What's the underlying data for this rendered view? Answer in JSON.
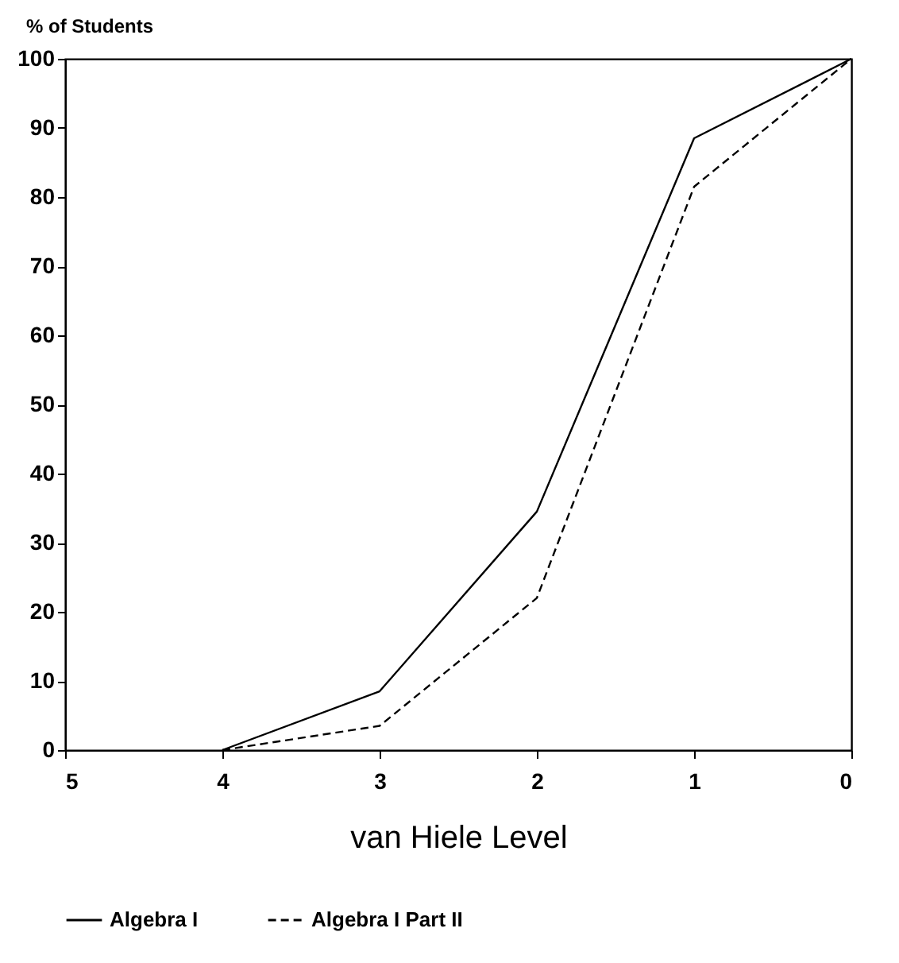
{
  "chart_data": {
    "type": "line",
    "ylabel": "% of Students",
    "xlabel": "van Hiele Level",
    "x": [
      4,
      3,
      2,
      1,
      0
    ],
    "series": [
      {
        "name": "Algebra I",
        "color": "#000000",
        "line_style": "solid",
        "values": [
          0,
          8.5,
          34.5,
          88.5,
          100
        ]
      },
      {
        "name": "Algebra I Part II",
        "color": "#000000",
        "line_style": "dashed",
        "values": [
          0,
          3.5,
          22,
          81.5,
          100
        ]
      }
    ],
    "xlim": [
      5,
      0
    ],
    "xticks": [
      5,
      4,
      3,
      2,
      1,
      0
    ],
    "ylim": [
      0,
      100
    ],
    "yticks": [
      0,
      10,
      20,
      30,
      40,
      50,
      60,
      70,
      80,
      90,
      100
    ],
    "grid": false,
    "legend": "bottom"
  }
}
